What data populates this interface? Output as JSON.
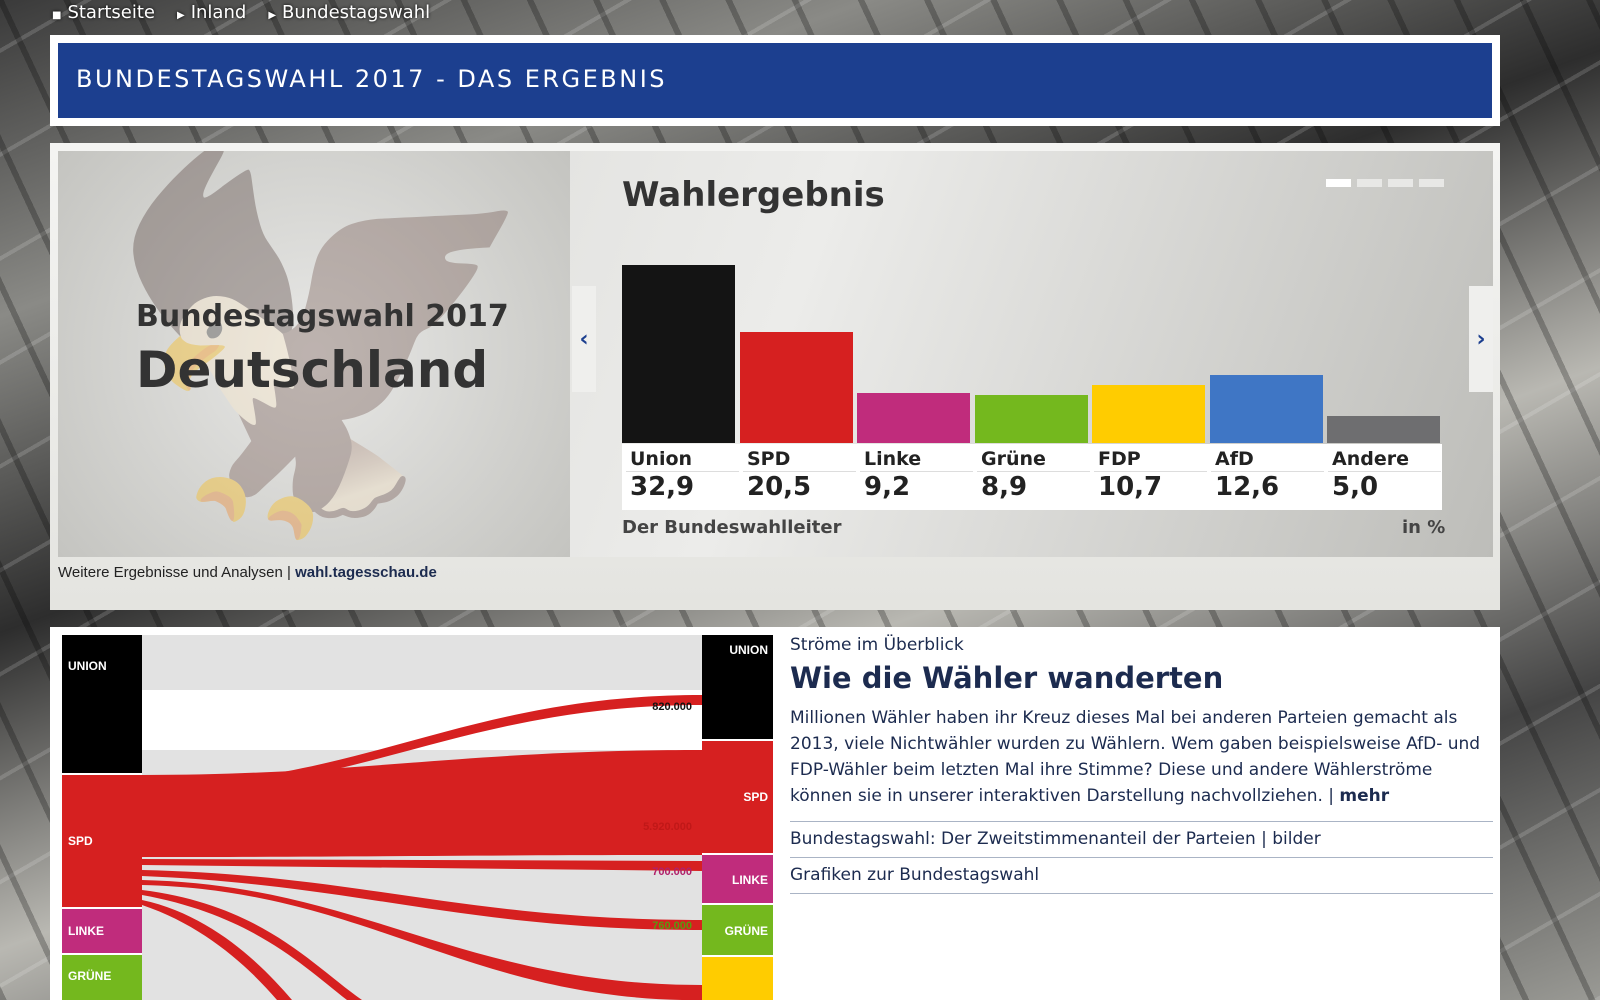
{
  "breadcrumb": [
    "Startseite",
    "Inland",
    "Bundestagswahl"
  ],
  "header": {
    "title": "BUNDESTAGSWAHL 2017 - DAS ERGEBNIS"
  },
  "slide": {
    "left_line1": "Bundestagswahl 2017",
    "left_line2": "Deutschland",
    "caption_prefix": "Weitere Ergebnisse und Analysen | ",
    "caption_link": "wahl.tagesschau.de",
    "prev": "‹",
    "next": "›"
  },
  "chart_data": {
    "type": "bar",
    "title": "Wahlergebnis",
    "categories": [
      "Union",
      "SPD",
      "Linke",
      "Grüne",
      "FDP",
      "AfD",
      "Andere"
    ],
    "values": [
      32.9,
      20.5,
      9.2,
      8.9,
      10.7,
      12.6,
      5.0
    ],
    "value_labels": [
      "32,9",
      "20,5",
      "9,2",
      "8,9",
      "10,7",
      "12,6",
      "5,0"
    ],
    "colors": [
      "#141414",
      "#d62020",
      "#c02c7c",
      "#74b81e",
      "#ffcc00",
      "#3f76c5",
      "#6e6e70"
    ],
    "source": "Der Bundeswahlleiter",
    "unit": "in %",
    "ylim": [
      0,
      33
    ]
  },
  "sankey": {
    "left": [
      "UNION",
      "SPD",
      "LINKE",
      "GRÜNE"
    ],
    "right": [
      "UNION",
      "SPD",
      "LINKE",
      "GRÜNE"
    ],
    "flows": [
      "820.000",
      "5.920.000",
      "700.000",
      "760.000"
    ]
  },
  "article": {
    "kicker": "Ströme im Überblick",
    "headline": "Wie die Wähler wanderten",
    "body": "Millionen Wähler haben ihr Kreuz dieses Mal bei anderen Parteien gemacht als 2013, viele Nichtwähler wurden zu Wählern. Wem gaben beispielsweise AfD- und FDP-Wähler beim letzten Mal ihre Stimme? Diese und andere Wählerströme können sie in unserer interaktiven Darstellung nachvollziehen. | ",
    "more": "mehr",
    "links": [
      "Bundestagswahl: Der Zweitstimmenanteil der Parteien | bilder",
      "Grafiken zur Bundestagswahl"
    ]
  }
}
